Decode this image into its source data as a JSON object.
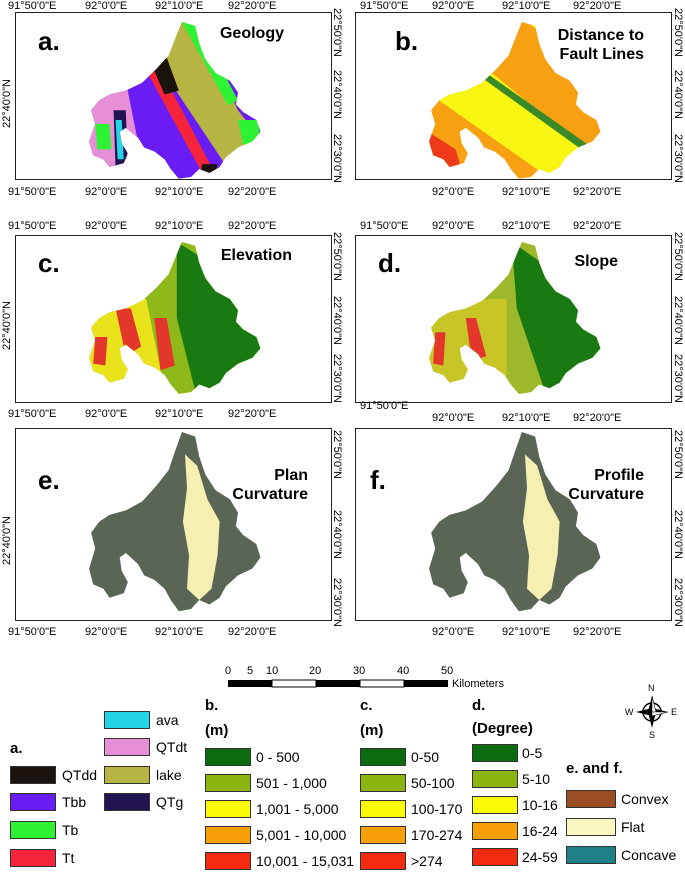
{
  "panels": [
    {
      "letter": "a.",
      "title": "Geology"
    },
    {
      "letter": "b.",
      "title": "Distance to Fault Lines"
    },
    {
      "letter": "c.",
      "title": "Elevation"
    },
    {
      "letter": "d.",
      "title": "Slope"
    },
    {
      "letter": "e.",
      "title": "Plan Curvature"
    },
    {
      "letter": "f.",
      "title": "Profile Curvature"
    }
  ],
  "ticks": {
    "lon_left": [
      "91°50'0\"E",
      "92°0'0\"E",
      "92°10'0\"E",
      "92°20'0\"E"
    ],
    "lon_right": [
      "91°50'0\"E",
      "92°0'0\"E",
      "92°10'0\"E",
      "92°20'0\"E"
    ],
    "lon_right_short": [
      "92°0'0\"E",
      "92°10'0\"E",
      "92°20'0\"E"
    ],
    "lat_left": [
      "22°40'0\"N"
    ],
    "lat_right": [
      "22°50'0\"N",
      "22°40'0\"N",
      "22°30'0\"N"
    ]
  },
  "scalebar": {
    "labels": [
      "0",
      "5",
      "10",
      "20",
      "30",
      "40",
      "50"
    ],
    "unit": "Kilometers"
  },
  "north_arrow": {
    "n": "N",
    "s": "S",
    "e": "E",
    "w": "W"
  },
  "legend_a": {
    "title": "a.",
    "items": [
      {
        "label": "QTdd",
        "color": "#1b130e"
      },
      {
        "label": "Tbb",
        "color": "#6a1cf5"
      },
      {
        "label": "Tb",
        "color": "#2ef234"
      },
      {
        "label": "Tt",
        "color": "#f5243a"
      },
      {
        "label": "ava",
        "color": "#23d6e6"
      },
      {
        "label": "QTdt",
        "color": "#e68fd6"
      },
      {
        "label": "lake",
        "color": "#b6b543"
      },
      {
        "label": "QTg",
        "color": "#211450"
      }
    ]
  },
  "legend_b": {
    "title": "b.",
    "unit": "(m)",
    "items": [
      {
        "label": "0 - 500",
        "color": "#0b6b0e"
      },
      {
        "label": "501 - 1,000",
        "color": "#8cb411"
      },
      {
        "label": "1,001 - 5,000",
        "color": "#fbfb05"
      },
      {
        "label": "5,001 - 10,000",
        "color": "#f9a009"
      },
      {
        "label": "10,001 - 15,031",
        "color": "#f42b10"
      }
    ]
  },
  "legend_c": {
    "title": "c.",
    "unit": "(m)",
    "items": [
      {
        "label": "0-50",
        "color": "#0b6b0e"
      },
      {
        "label": "50-100",
        "color": "#8cb411"
      },
      {
        "label": "100-170",
        "color": "#fbfb05"
      },
      {
        "label": "170-274",
        "color": "#f9a009"
      },
      {
        "label": ">274",
        "color": "#f42b10"
      }
    ]
  },
  "legend_d": {
    "title": "d.",
    "unit": "(Degree)",
    "items": [
      {
        "label": "0-5",
        "color": "#0b6b0e"
      },
      {
        "label": "5-10",
        "color": "#8cb411"
      },
      {
        "label": "10-16",
        "color": "#fbfb05"
      },
      {
        "label": "16-24",
        "color": "#f9a009"
      },
      {
        "label": "24-59",
        "color": "#f42b10"
      }
    ]
  },
  "legend_ef": {
    "title": "e. and f.",
    "items": [
      {
        "label": "Convex",
        "color": "#9c4f22"
      },
      {
        "label": "Flat",
        "color": "#fbf7c0"
      },
      {
        "label": "Concave",
        "color": "#1f7f86"
      }
    ]
  },
  "colors": {
    "curv_base": "#5a6556",
    "flat": "#f6efb2",
    "elev_green": "#1a7a12",
    "elev_lime": "#8fb81a",
    "elev_yellow": "#e9e31c",
    "elev_red": "#e2372a",
    "dist_red": "#ee3a19",
    "dist_orange": "#f6a012",
    "dist_yellow": "#f7f511",
    "dist_green": "#3a8a2a"
  }
}
